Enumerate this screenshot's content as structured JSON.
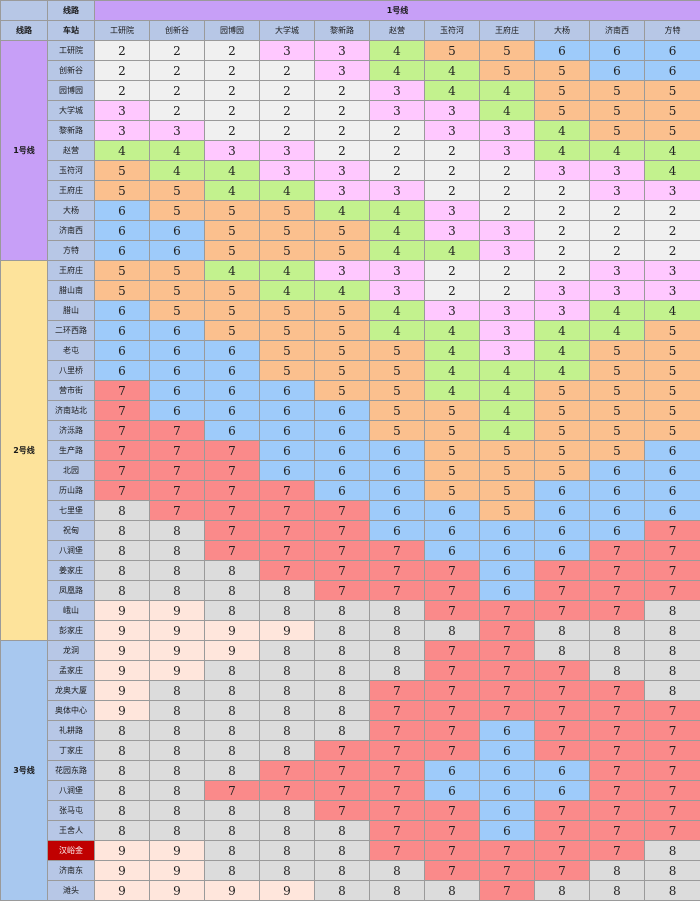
{
  "header": {
    "line_label": "线路",
    "station_label": "车站",
    "target_line": "1号线"
  },
  "columns": [
    "工研院",
    "创新谷",
    "园博园",
    "大学城",
    "黎新路",
    "赵营",
    "玉符河",
    "王府庄",
    "大杨",
    "济南西",
    "方特"
  ],
  "colors": {
    "2": "#f0f0f0",
    "3": "#ffc8ff",
    "4": "#c3f28e",
    "5": "#fbc08e",
    "6": "#9ecbfa",
    "7": "#fa8a8a",
    "8": "#dcdcdc",
    "9": "#ffe6dc",
    "line1": "#c79ff7",
    "line2": "#fde39b",
    "line3": "#a8c8ef",
    "header": "#b7c7e6",
    "highlight": "#c00000"
  },
  "groups": [
    {
      "line": "1号线",
      "color_key": "line1",
      "rows": [
        {
          "station": "工研院",
          "values": [
            2,
            2,
            2,
            3,
            3,
            4,
            5,
            5,
            6,
            6,
            6
          ]
        },
        {
          "station": "创新谷",
          "values": [
            2,
            2,
            2,
            2,
            3,
            4,
            4,
            5,
            5,
            6,
            6
          ]
        },
        {
          "station": "园博园",
          "values": [
            2,
            2,
            2,
            2,
            2,
            3,
            4,
            4,
            5,
            5,
            5
          ]
        },
        {
          "station": "大学城",
          "values": [
            3,
            2,
            2,
            2,
            2,
            3,
            3,
            4,
            5,
            5,
            5
          ]
        },
        {
          "station": "黎新路",
          "values": [
            3,
            3,
            2,
            2,
            2,
            2,
            3,
            3,
            4,
            5,
            5
          ]
        },
        {
          "station": "赵营",
          "values": [
            4,
            4,
            3,
            3,
            2,
            2,
            2,
            3,
            4,
            4,
            4
          ]
        },
        {
          "station": "玉符河",
          "values": [
            5,
            4,
            4,
            3,
            3,
            2,
            2,
            2,
            3,
            3,
            4
          ]
        },
        {
          "station": "王府庄",
          "values": [
            5,
            5,
            4,
            4,
            3,
            3,
            2,
            2,
            2,
            3,
            3
          ]
        },
        {
          "station": "大杨",
          "values": [
            6,
            5,
            5,
            5,
            4,
            4,
            3,
            2,
            2,
            2,
            2
          ]
        },
        {
          "station": "济南西",
          "values": [
            6,
            6,
            5,
            5,
            5,
            4,
            3,
            3,
            2,
            2,
            2
          ]
        },
        {
          "station": "方特",
          "values": [
            6,
            6,
            5,
            5,
            5,
            4,
            4,
            3,
            2,
            2,
            2
          ]
        }
      ]
    },
    {
      "line": "2号线",
      "color_key": "line2",
      "rows": [
        {
          "station": "王府庄",
          "values": [
            5,
            5,
            4,
            4,
            3,
            3,
            2,
            2,
            2,
            3,
            3
          ]
        },
        {
          "station": "腊山南",
          "values": [
            5,
            5,
            5,
            4,
            4,
            3,
            2,
            2,
            3,
            3,
            3
          ]
        },
        {
          "station": "腊山",
          "values": [
            6,
            5,
            5,
            5,
            5,
            4,
            3,
            3,
            3,
            4,
            4
          ]
        },
        {
          "station": "二环西路",
          "values": [
            6,
            6,
            5,
            5,
            5,
            4,
            4,
            3,
            4,
            4,
            5
          ]
        },
        {
          "station": "老屯",
          "values": [
            6,
            6,
            6,
            5,
            5,
            5,
            4,
            3,
            4,
            5,
            5
          ]
        },
        {
          "station": "八里桥",
          "values": [
            6,
            6,
            6,
            5,
            5,
            5,
            4,
            4,
            4,
            5,
            5
          ]
        },
        {
          "station": "营市街",
          "values": [
            7,
            6,
            6,
            6,
            5,
            5,
            4,
            4,
            5,
            5,
            5
          ]
        },
        {
          "station": "济南站北",
          "values": [
            7,
            6,
            6,
            6,
            6,
            5,
            5,
            4,
            5,
            5,
            5
          ]
        },
        {
          "station": "济泺路",
          "values": [
            7,
            7,
            6,
            6,
            6,
            5,
            5,
            4,
            5,
            5,
            5
          ]
        },
        {
          "station": "生产路",
          "values": [
            7,
            7,
            7,
            6,
            6,
            6,
            5,
            5,
            5,
            5,
            6
          ]
        },
        {
          "station": "北园",
          "values": [
            7,
            7,
            7,
            6,
            6,
            6,
            5,
            5,
            5,
            6,
            6
          ]
        },
        {
          "station": "历山路",
          "values": [
            7,
            7,
            7,
            7,
            6,
            6,
            5,
            5,
            6,
            6,
            6
          ]
        },
        {
          "station": "七里堡",
          "values": [
            8,
            7,
            7,
            7,
            7,
            6,
            6,
            5,
            6,
            6,
            6
          ]
        },
        {
          "station": "祝甸",
          "values": [
            8,
            8,
            7,
            7,
            7,
            6,
            6,
            6,
            6,
            6,
            7
          ]
        },
        {
          "station": "八涧堡",
          "values": [
            8,
            8,
            7,
            7,
            7,
            7,
            6,
            6,
            6,
            7,
            7
          ]
        },
        {
          "station": "姜家庄",
          "values": [
            8,
            8,
            8,
            7,
            7,
            7,
            7,
            6,
            7,
            7,
            7
          ]
        },
        {
          "station": "凤凰路",
          "values": [
            8,
            8,
            8,
            8,
            7,
            7,
            7,
            6,
            7,
            7,
            7
          ]
        },
        {
          "station": "峨山",
          "values": [
            9,
            9,
            8,
            8,
            8,
            8,
            7,
            7,
            7,
            7,
            8
          ]
        },
        {
          "station": "彭家庄",
          "values": [
            9,
            9,
            9,
            9,
            8,
            8,
            8,
            7,
            8,
            8,
            8
          ]
        }
      ]
    },
    {
      "line": "3号线",
      "color_key": "line3",
      "rows": [
        {
          "station": "龙洞",
          "values": [
            9,
            9,
            9,
            8,
            8,
            8,
            7,
            7,
            8,
            8,
            8
          ]
        },
        {
          "station": "孟家庄",
          "values": [
            9,
            9,
            8,
            8,
            8,
            8,
            7,
            7,
            7,
            8,
            8
          ]
        },
        {
          "station": "龙奥大厦",
          "values": [
            9,
            8,
            8,
            8,
            8,
            7,
            7,
            7,
            7,
            7,
            8
          ]
        },
        {
          "station": "奥体中心",
          "values": [
            9,
            8,
            8,
            8,
            8,
            7,
            7,
            7,
            7,
            7,
            7
          ]
        },
        {
          "station": "礼耕路",
          "values": [
            8,
            8,
            8,
            8,
            8,
            7,
            7,
            6,
            7,
            7,
            7
          ]
        },
        {
          "station": "丁家庄",
          "values": [
            8,
            8,
            8,
            8,
            7,
            7,
            7,
            6,
            7,
            7,
            7
          ]
        },
        {
          "station": "花园东路",
          "values": [
            8,
            8,
            8,
            7,
            7,
            7,
            6,
            6,
            6,
            7,
            7
          ]
        },
        {
          "station": "八涧堡",
          "values": [
            8,
            8,
            7,
            7,
            7,
            7,
            6,
            6,
            6,
            7,
            7
          ]
        },
        {
          "station": "张马屯",
          "values": [
            8,
            8,
            8,
            8,
            7,
            7,
            7,
            6,
            7,
            7,
            7
          ]
        },
        {
          "station": "王舍人",
          "values": [
            8,
            8,
            8,
            8,
            8,
            7,
            7,
            6,
            7,
            7,
            7
          ]
        },
        {
          "station": "汉峪金",
          "values": [
            9,
            9,
            8,
            8,
            8,
            7,
            7,
            7,
            7,
            7,
            8
          ],
          "highlight": true
        },
        {
          "station": "济南东",
          "values": [
            9,
            9,
            8,
            8,
            8,
            8,
            7,
            7,
            7,
            8,
            8
          ]
        },
        {
          "station": "滩头",
          "values": [
            9,
            9,
            9,
            9,
            8,
            8,
            8,
            7,
            8,
            8,
            8
          ]
        }
      ]
    }
  ]
}
